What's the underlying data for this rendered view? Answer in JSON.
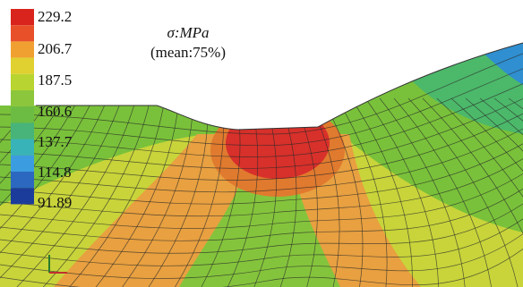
{
  "legend": {
    "labels": [
      "229.2",
      "206.7",
      "187.5",
      "160.6",
      "137.7",
      "114.8",
      "91.89"
    ]
  },
  "annotation": {
    "unit": "σ:MPa",
    "note": "(mean:75%)"
  }
}
